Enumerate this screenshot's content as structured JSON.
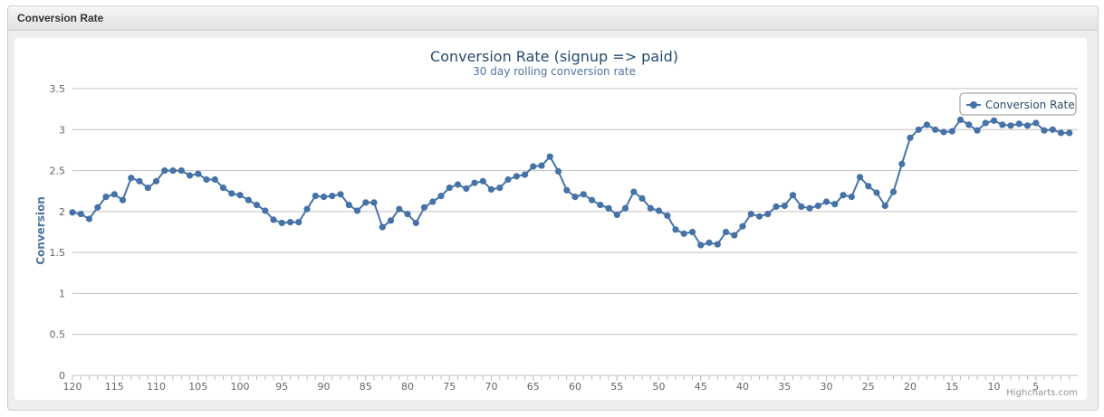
{
  "widget": {
    "title": "Conversion Rate"
  },
  "credits": "Highcharts.com",
  "colors": {
    "series": "#4572A7",
    "grid": "#C0C0C0",
    "axis_title": "#4d759e"
  },
  "chart_data": {
    "type": "line",
    "title": "Conversion Rate (signup => paid)",
    "subtitle": "30 day rolling conversion rate",
    "ylabel": "Conversion",
    "xlabel": "",
    "ylim": [
      0,
      3.5
    ],
    "yticks": [
      0,
      0.5,
      1,
      1.5,
      2,
      2.5,
      3,
      3.5
    ],
    "xlim": [
      120,
      0
    ],
    "x_reversed": true,
    "xticks": [
      120,
      115,
      110,
      105,
      100,
      95,
      90,
      85,
      80,
      75,
      70,
      65,
      60,
      55,
      50,
      45,
      40,
      35,
      30,
      25,
      20,
      15,
      10,
      5
    ],
    "grid": true,
    "legend_position": "top-right",
    "series": [
      {
        "name": "Conversion Rate",
        "marker": "circle",
        "x": [
          120,
          119,
          118,
          117,
          116,
          115,
          114,
          113,
          112,
          111,
          110,
          109,
          108,
          107,
          106,
          105,
          104,
          103,
          102,
          101,
          100,
          99,
          98,
          97,
          96,
          95,
          94,
          93,
          92,
          91,
          90,
          89,
          88,
          87,
          86,
          85,
          84,
          83,
          82,
          81,
          80,
          79,
          78,
          77,
          76,
          75,
          74,
          73,
          72,
          71,
          70,
          69,
          68,
          67,
          66,
          65,
          64,
          63,
          62,
          61,
          60,
          59,
          58,
          57,
          56,
          55,
          54,
          53,
          52,
          51,
          50,
          49,
          48,
          47,
          46,
          45,
          44,
          43,
          42,
          41,
          40,
          39,
          38,
          37,
          36,
          35,
          34,
          33,
          32,
          31,
          30,
          29,
          28,
          27,
          26,
          25,
          24,
          23,
          22,
          21,
          20,
          19,
          18,
          17,
          16,
          15,
          14,
          13,
          12,
          11,
          10,
          9,
          8,
          7,
          6,
          5,
          4,
          3,
          2,
          1
        ],
        "values": [
          1.99,
          1.97,
          1.91,
          2.05,
          2.18,
          2.21,
          2.14,
          2.41,
          2.37,
          2.29,
          2.37,
          2.5,
          2.5,
          2.5,
          2.44,
          2.46,
          2.39,
          2.39,
          2.29,
          2.22,
          2.2,
          2.14,
          2.08,
          2.01,
          1.9,
          1.86,
          1.87,
          1.87,
          2.03,
          2.19,
          2.18,
          2.19,
          2.21,
          2.08,
          2.01,
          2.11,
          2.11,
          1.81,
          1.89,
          2.03,
          1.97,
          1.86,
          2.05,
          2.12,
          2.19,
          2.29,
          2.33,
          2.28,
          2.35,
          2.37,
          2.27,
          2.29,
          2.39,
          2.43,
          2.45,
          2.55,
          2.56,
          2.67,
          2.49,
          2.26,
          2.18,
          2.21,
          2.14,
          2.08,
          2.04,
          1.96,
          2.04,
          2.24,
          2.16,
          2.04,
          2.01,
          1.95,
          1.78,
          1.73,
          1.75,
          1.59,
          1.62,
          1.6,
          1.75,
          1.71,
          1.82,
          1.97,
          1.94,
          1.97,
          2.06,
          2.07,
          2.2,
          2.06,
          2.04,
          2.07,
          2.12,
          2.09,
          2.2,
          2.18,
          2.42,
          2.31,
          2.23,
          2.07,
          2.24,
          2.58,
          2.9,
          3.0,
          3.06,
          3.0,
          2.97,
          2.98,
          3.12,
          3.06,
          2.99,
          3.08,
          3.11,
          3.06,
          3.05,
          3.07,
          3.05,
          3.08,
          2.99,
          3.0,
          2.96,
          2.96
        ]
      }
    ]
  }
}
